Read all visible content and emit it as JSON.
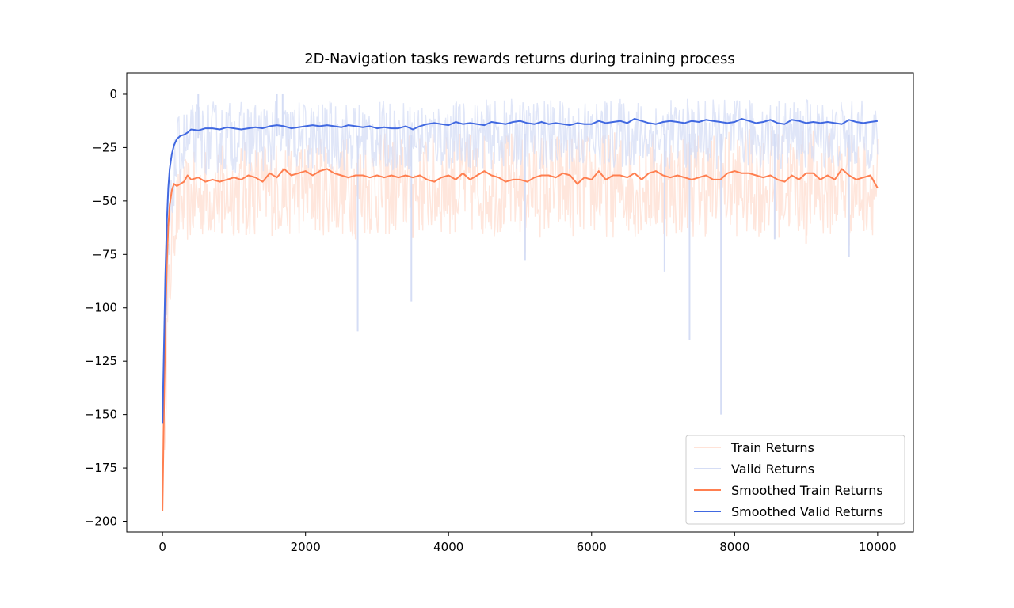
{
  "chart_data": {
    "type": "line",
    "title": "2D-Navigation tasks rewards returns during training process",
    "xlabel": "",
    "ylabel": "",
    "xlim": [
      -500,
      10500
    ],
    "ylim": [
      -205,
      10
    ],
    "xticks": [
      0,
      2000,
      4000,
      6000,
      8000,
      10000
    ],
    "xtick_labels": [
      "0",
      "2000",
      "4000",
      "6000",
      "8000",
      "10000"
    ],
    "yticks": [
      0,
      -25,
      -50,
      -75,
      -100,
      -125,
      -150,
      -175,
      -200
    ],
    "ytick_labels": [
      "0",
      "−25",
      "−50",
      "−75",
      "−100",
      "−125",
      "−150",
      "−175",
      "−200"
    ],
    "grid": false,
    "legend_position": "lower-right",
    "series": [
      {
        "name": "Train Returns",
        "color": "#ffe3d8",
        "kind": "raw",
        "envelope": {
          "x": [
            0,
            50,
            100,
            150,
            200,
            300,
            400,
            500,
            1000,
            2000,
            3000,
            4000,
            5000,
            6000,
            7000,
            8000,
            9000,
            10000
          ],
          "low": [
            -195,
            -150,
            -110,
            -80,
            -72,
            -70,
            -70,
            -68,
            -67,
            -66,
            -67,
            -66,
            -67,
            -67,
            -67,
            -67,
            -67,
            -66
          ],
          "high": [
            -150,
            -100,
            -60,
            -40,
            -35,
            -30,
            -28,
            -25,
            -22,
            -20,
            -18,
            -18,
            -17,
            -17,
            -17,
            -16,
            -16,
            -18
          ]
        },
        "points": [
          [
            830,
            -65
          ],
          [
            1170,
            -66
          ],
          [
            2700,
            -68
          ],
          [
            3500,
            -67
          ],
          [
            5070,
            -74
          ],
          [
            8570,
            -67
          ],
          [
            9000,
            -70
          ],
          [
            9600,
            -71
          ]
        ]
      },
      {
        "name": "Valid Returns",
        "color": "#d5ddf5",
        "kind": "raw",
        "envelope": {
          "x": [
            0,
            50,
            100,
            150,
            200,
            300,
            400,
            500,
            1000,
            2000,
            3000,
            4000,
            5000,
            6000,
            7000,
            8000,
            9000,
            10000
          ],
          "low": [
            -155,
            -120,
            -80,
            -55,
            -45,
            -40,
            -38,
            -38,
            -37,
            -36,
            -36,
            -35,
            -35,
            -35,
            -35,
            -35,
            -35,
            -35
          ],
          "high": [
            -150,
            -95,
            -50,
            -25,
            -12,
            -6,
            -5,
            -3,
            -3,
            -3,
            -3,
            -3,
            -2,
            -2,
            -2,
            -2,
            -2,
            -3
          ]
        },
        "points": [
          [
            500,
            0
          ],
          [
            1600,
            0
          ],
          [
            1680,
            0
          ],
          [
            2730,
            -111
          ],
          [
            3480,
            -97
          ],
          [
            5070,
            -78
          ],
          [
            7020,
            -83
          ],
          [
            7370,
            -115
          ],
          [
            7810,
            -150
          ],
          [
            8560,
            -68
          ],
          [
            9600,
            -76
          ]
        ]
      },
      {
        "name": "Smoothed Train Returns",
        "color": "#ff7f50",
        "kind": "smoothed",
        "x": [
          0,
          20,
          40,
          60,
          80,
          100,
          130,
          160,
          200,
          250,
          300,
          350,
          400,
          500,
          600,
          700,
          800,
          900,
          1000,
          1100,
          1200,
          1300,
          1400,
          1500,
          1600,
          1700,
          1800,
          1900,
          2000,
          2100,
          2200,
          2300,
          2400,
          2500,
          2600,
          2700,
          2800,
          2900,
          3000,
          3100,
          3200,
          3300,
          3400,
          3500,
          3600,
          3700,
          3800,
          3900,
          4000,
          4100,
          4200,
          4300,
          4400,
          4500,
          4600,
          4700,
          4800,
          4900,
          5000,
          5100,
          5200,
          5300,
          5400,
          5500,
          5600,
          5700,
          5800,
          5900,
          6000,
          6100,
          6200,
          6300,
          6400,
          6500,
          6600,
          6700,
          6800,
          6900,
          7000,
          7100,
          7200,
          7300,
          7400,
          7500,
          7600,
          7700,
          7800,
          7900,
          8000,
          8100,
          8200,
          8300,
          8400,
          8500,
          8600,
          8700,
          8800,
          8900,
          9000,
          9100,
          9200,
          9300,
          9400,
          9500,
          9600,
          9700,
          9800,
          9900,
          10000
        ],
        "y": [
          -195,
          -150,
          -110,
          -80,
          -62,
          -52,
          -45,
          -42,
          -43,
          -42,
          -41,
          -38,
          -40,
          -39,
          -41,
          -40,
          -41,
          -40,
          -39,
          -40,
          -38,
          -39,
          -41,
          -37,
          -39,
          -35,
          -38,
          -37,
          -36,
          -38,
          -36,
          -35,
          -37,
          -38,
          -39,
          -38,
          -38,
          -39,
          -38,
          -39,
          -38,
          -39,
          -38,
          -39,
          -38,
          -40,
          -41,
          -39,
          -38,
          -40,
          -37,
          -40,
          -38,
          -36,
          -38,
          -39,
          -41,
          -40,
          -40,
          -41,
          -39,
          -38,
          -38,
          -39,
          -37,
          -38,
          -42,
          -39,
          -40,
          -36,
          -40,
          -38,
          -38,
          -39,
          -37,
          -40,
          -37,
          -36,
          -38,
          -39,
          -38,
          -39,
          -40,
          -39,
          -38,
          -40,
          -40,
          -37,
          -36,
          -37,
          -37,
          -38,
          -39,
          -38,
          -40,
          -41,
          -38,
          -40,
          -37,
          -37,
          -40,
          -38,
          -40,
          -35,
          -38,
          -40,
          -39,
          -38,
          -44
        ]
      },
      {
        "name": "Smoothed Valid Returns",
        "color": "#4169e1",
        "kind": "smoothed",
        "x": [
          0,
          20,
          40,
          60,
          80,
          100,
          130,
          160,
          200,
          250,
          300,
          350,
          400,
          500,
          600,
          700,
          800,
          900,
          1000,
          1100,
          1200,
          1300,
          1400,
          1500,
          1600,
          1700,
          1800,
          1900,
          2000,
          2100,
          2200,
          2300,
          2400,
          2500,
          2600,
          2700,
          2800,
          2900,
          3000,
          3100,
          3200,
          3300,
          3400,
          3500,
          3600,
          3700,
          3800,
          3900,
          4000,
          4100,
          4200,
          4300,
          4400,
          4500,
          4600,
          4700,
          4800,
          4900,
          5000,
          5100,
          5200,
          5300,
          5400,
          5500,
          5600,
          5700,
          5800,
          5900,
          6000,
          6100,
          6200,
          6300,
          6400,
          6500,
          6600,
          6700,
          6800,
          6900,
          7000,
          7100,
          7200,
          7300,
          7400,
          7500,
          7600,
          7700,
          7800,
          7900,
          8000,
          8100,
          8200,
          8300,
          8400,
          8500,
          8600,
          8700,
          8800,
          8900,
          9000,
          9100,
          9200,
          9300,
          9400,
          9500,
          9600,
          9700,
          9800,
          9900,
          10000
        ],
        "y": [
          -154,
          -120,
          -85,
          -60,
          -44,
          -35,
          -28,
          -24,
          -21,
          -19.5,
          -19,
          -18,
          -16.5,
          -17,
          -16,
          -16,
          -16.5,
          -15.5,
          -16,
          -16.5,
          -16,
          -15.5,
          -16,
          -15,
          -14.5,
          -15,
          -16,
          -15.5,
          -15,
          -14.5,
          -15,
          -14.5,
          -15,
          -15.5,
          -14.5,
          -15,
          -15.5,
          -15,
          -16,
          -15.5,
          -16,
          -16,
          -15,
          -16.5,
          -15,
          -14,
          -13.5,
          -14,
          -14.5,
          -13,
          -14,
          -13.5,
          -14,
          -14.5,
          -13,
          -13.5,
          -14,
          -13,
          -12.5,
          -13.5,
          -14,
          -13,
          -14,
          -13.5,
          -14,
          -14.5,
          -13.5,
          -14,
          -14,
          -12.5,
          -13.5,
          -13,
          -12.5,
          -13.5,
          -11.5,
          -12.5,
          -13.5,
          -14,
          -13,
          -12.5,
          -13,
          -13.5,
          -12.5,
          -13,
          -12,
          -12.5,
          -13,
          -13.5,
          -13,
          -11.5,
          -12.5,
          -13.5,
          -13,
          -12,
          -13.5,
          -14,
          -12,
          -12.5,
          -13.5,
          -13,
          -13.5,
          -13,
          -13.5,
          -14,
          -12,
          -13,
          -13.5,
          -13,
          -12.5
        ]
      }
    ]
  }
}
